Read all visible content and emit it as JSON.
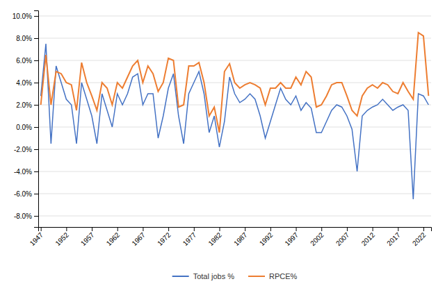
{
  "chart_data": {
    "type": "line",
    "x": [
      1947,
      1948,
      1949,
      1950,
      1951,
      1952,
      1953,
      1954,
      1955,
      1956,
      1957,
      1958,
      1959,
      1960,
      1961,
      1962,
      1963,
      1964,
      1965,
      1966,
      1967,
      1968,
      1969,
      1970,
      1971,
      1972,
      1973,
      1974,
      1975,
      1976,
      1977,
      1978,
      1979,
      1980,
      1981,
      1982,
      1983,
      1984,
      1985,
      1986,
      1987,
      1988,
      1989,
      1990,
      1991,
      1992,
      1993,
      1994,
      1995,
      1996,
      1997,
      1998,
      1999,
      2000,
      2001,
      2002,
      2003,
      2004,
      2005,
      2006,
      2007,
      2008,
      2009,
      2010,
      2011,
      2012,
      2013,
      2014,
      2015,
      2016,
      2017,
      2018,
      2019,
      2020,
      2021,
      2022,
      2023
    ],
    "series": [
      {
        "name": "Total jobs %",
        "color": "#4472C4",
        "values": [
          0.028,
          0.075,
          -0.015,
          0.055,
          0.04,
          0.025,
          0.02,
          -0.015,
          0.04,
          0.025,
          0.01,
          -0.015,
          0.03,
          0.015,
          0.0,
          0.03,
          0.02,
          0.03,
          0.045,
          0.048,
          0.02,
          0.03,
          0.03,
          -0.01,
          0.01,
          0.035,
          0.048,
          0.01,
          -0.015,
          0.03,
          0.04,
          0.05,
          0.03,
          -0.005,
          0.01,
          -0.018,
          0.005,
          0.045,
          0.03,
          0.022,
          0.025,
          0.03,
          0.025,
          0.01,
          -0.01,
          0.005,
          0.02,
          0.035,
          0.025,
          0.02,
          0.028,
          0.015,
          0.022,
          0.017,
          -0.005,
          -0.005,
          0.005,
          0.015,
          0.02,
          0.018,
          0.01,
          -0.002,
          -0.04,
          0.01,
          0.015,
          0.018,
          0.02,
          0.025,
          0.02,
          0.015,
          0.018,
          0.02,
          0.015,
          -0.065,
          0.03,
          0.028,
          0.02
        ]
      },
      {
        "name": "RPCE%",
        "color": "#ED7D31",
        "values": [
          0.02,
          0.065,
          0.02,
          0.05,
          0.048,
          0.04,
          0.038,
          0.015,
          0.058,
          0.04,
          0.028,
          0.015,
          0.04,
          0.035,
          0.02,
          0.04,
          0.035,
          0.045,
          0.055,
          0.06,
          0.04,
          0.055,
          0.048,
          0.032,
          0.04,
          0.062,
          0.06,
          0.018,
          0.02,
          0.055,
          0.055,
          0.058,
          0.04,
          0.01,
          0.018,
          -0.005,
          0.05,
          0.057,
          0.04,
          0.035,
          0.038,
          0.04,
          0.038,
          0.035,
          0.02,
          0.035,
          0.035,
          0.04,
          0.035,
          0.035,
          0.045,
          0.038,
          0.05,
          0.045,
          0.018,
          0.02,
          0.028,
          0.038,
          0.04,
          0.04,
          0.028,
          0.015,
          0.01,
          0.028,
          0.035,
          0.038,
          0.035,
          0.04,
          0.038,
          0.032,
          0.03,
          0.04,
          0.032,
          0.025,
          0.085,
          0.082,
          0.028
        ]
      }
    ],
    "xlim": [
      1946.5,
      2023.5
    ],
    "xticks": [
      1947,
      1952,
      1957,
      1962,
      1967,
      1972,
      1977,
      1982,
      1987,
      1992,
      1997,
      2002,
      2007,
      2012,
      2017,
      2022
    ],
    "ylim": [
      -0.09,
      0.105
    ],
    "yticks": [
      {
        "value": -0.08,
        "label": "-8.0%"
      },
      {
        "value": -0.06,
        "label": "-6.0%"
      },
      {
        "value": -0.04,
        "label": "-4.0%"
      },
      {
        "value": -0.02,
        "label": "-2.0%"
      },
      {
        "value": 0.0,
        "label": "0.0%"
      },
      {
        "value": 0.02,
        "label": "2.0%"
      },
      {
        "value": 0.04,
        "label": "4.0%"
      },
      {
        "value": 0.06,
        "label": "6.0%"
      },
      {
        "value": 0.08,
        "label": "8.0%"
      },
      {
        "value": 0.1,
        "label": "10.0%"
      }
    ],
    "grid": true,
    "legend": "bottom"
  }
}
